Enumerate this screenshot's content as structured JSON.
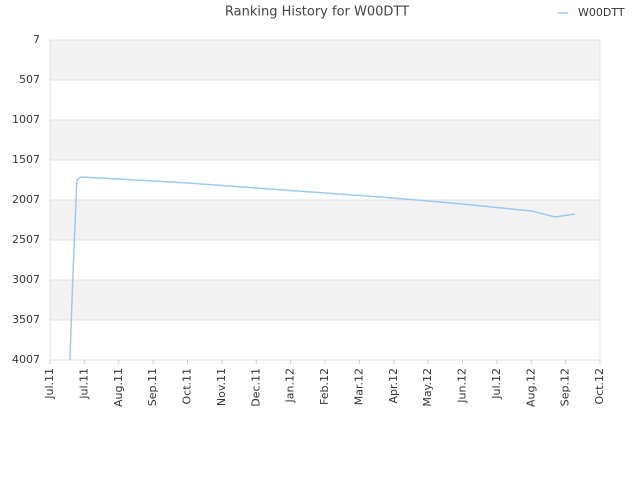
{
  "chart_data": {
    "type": "line",
    "title": "Ranking History for W00DTT",
    "series": [
      {
        "name": "W00DTT",
        "color": "#99ccf0",
        "x": [
          0.58,
          0.62,
          0.68,
          0.73,
          0.78,
          0.9,
          2,
          4,
          6,
          8,
          10,
          12,
          14,
          14.69,
          15.27
        ],
        "values": [
          4007,
          3500,
          2800,
          2300,
          1757,
          1719,
          1744,
          1794,
          1857,
          1919,
          1982,
          2057,
          2144,
          2219,
          2182
        ]
      }
    ],
    "xlim": [
      0,
      16
    ],
    "xticks": [
      {
        "value": 0,
        "label": "Jul.11"
      },
      {
        "value": 1,
        "label": "Jul.11"
      },
      {
        "value": 2,
        "label": "Aug.11"
      },
      {
        "value": 3,
        "label": "Sep.11"
      },
      {
        "value": 4,
        "label": "Oct.11"
      },
      {
        "value": 5,
        "label": "Nov.11"
      },
      {
        "value": 6,
        "label": "Dec.11"
      },
      {
        "value": 7,
        "label": "Jan.12"
      },
      {
        "value": 8,
        "label": "Feb.12"
      },
      {
        "value": 9,
        "label": "Mar.12"
      },
      {
        "value": 10,
        "label": "Apr.12"
      },
      {
        "value": 11,
        "label": "May.12"
      },
      {
        "value": 12,
        "label": "Jun.12"
      },
      {
        "value": 13,
        "label": "Jul.12"
      },
      {
        "value": 14,
        "label": "Aug.12"
      },
      {
        "value": 15,
        "label": "Sep.12"
      },
      {
        "value": 16,
        "label": "Oct.12"
      }
    ],
    "ylim": [
      4007,
      7
    ],
    "yticks": [
      7,
      507,
      1007,
      1507,
      2007,
      2507,
      3007,
      3507,
      4007
    ],
    "grid": true,
    "legend": "top-right"
  }
}
